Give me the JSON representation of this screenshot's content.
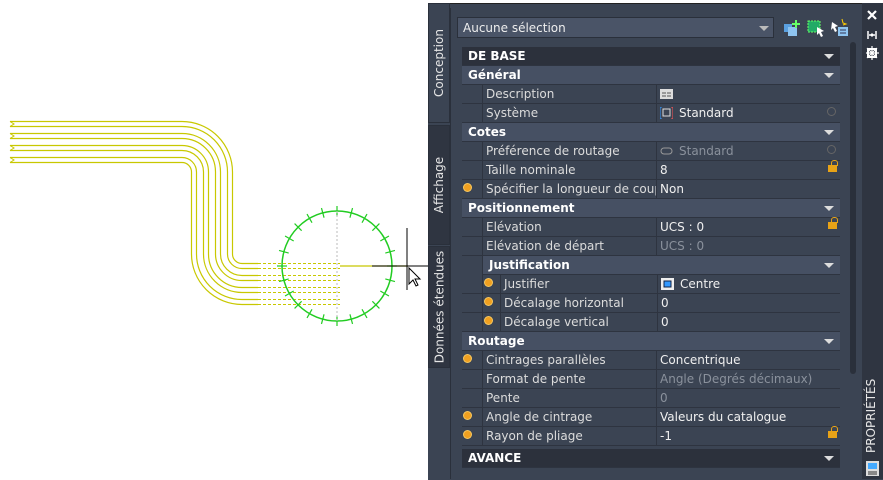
{
  "selection_dropdown": {
    "value": "Aucune sélection"
  },
  "toolbar": {
    "icons": [
      "add-to-selection-icon",
      "select-objects-icon",
      "quick-select-icon"
    ]
  },
  "side_tabs": [
    "Conception",
    "Affichage",
    "Données étendues"
  ],
  "palette_title": "PROPRIÉTÉS",
  "window_icons": [
    "close-icon",
    "auto-hide-icon",
    "settings-icon"
  ],
  "sections": {
    "base": "DE BASE",
    "general": "Général",
    "description": "Description",
    "systeme": "Système",
    "systeme_val": "Standard",
    "cotes": "Cotes",
    "pref": "Préférence de routage",
    "pref_val": "Standard",
    "taille": "Taille nominale",
    "taille_val": "8",
    "longueur": "Spécifier la longueur de coupe",
    "longueur_val": "Non",
    "position": "Positionnement",
    "elev": "Elévation",
    "elev_val": "UCS : 0",
    "elev_dep": "Elévation de départ",
    "elev_dep_val": "UCS : 0",
    "justification": "Justification",
    "justifier": "Justifier",
    "justifier_val": "Centre",
    "dec_h": "Décalage horizontal",
    "dec_h_val": "0",
    "dec_v": "Décalage vertical",
    "dec_v_val": "0",
    "routage": "Routage",
    "cintrages": "Cintrages parallèles",
    "cintrages_val": "Concentrique",
    "format": "Format de pente",
    "format_val": "Angle (Degrés décimaux)",
    "pente": "Pente",
    "pente_val": "0",
    "angle": "Angle de cintrage",
    "angle_val": "Valeurs du catalogue",
    "rayon": "Rayon de pliage",
    "rayon_val": "-1",
    "avance": "AVANCE"
  },
  "colors": {
    "pipe": "#c8c800",
    "grip_circle": "#22cc22",
    "panel": "#3b4453",
    "modified_star": "#f0a020",
    "lock": "#e8a317"
  }
}
